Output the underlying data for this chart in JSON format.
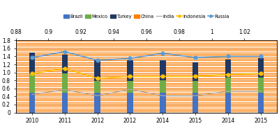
{
  "x_labels": [
    "2010",
    "2011",
    "2012",
    "2012",
    "2014",
    "2015",
    "2014",
    "2015"
  ],
  "top_axis_values": [
    "0.88",
    "0.9",
    "0.92",
    "0.94",
    "0.96",
    "0.98",
    "1",
    "1.02"
  ],
  "ylim": [
    0,
    1.8
  ],
  "yticks": [
    0,
    0.2,
    0.4,
    0.6,
    0.8,
    1.0,
    1.2,
    1.4,
    1.6,
    1.8
  ],
  "bar_width": 0.18,
  "brazil_vals": [
    0.5,
    0.5,
    0.5,
    0.5,
    0.5,
    0.5,
    0.5,
    0.5
  ],
  "mexico_vals": [
    0.47,
    0.47,
    0.28,
    0.28,
    0.3,
    0.28,
    0.38,
    0.38
  ],
  "turkey_vals": [
    0.52,
    0.47,
    0.52,
    0.52,
    0.5,
    0.47,
    0.45,
    0.47
  ],
  "china_y_levels": [
    0.02,
    0.06,
    0.1,
    0.14,
    0.18,
    0.22,
    0.26,
    0.3,
    0.34,
    0.38,
    0.42,
    0.46,
    0.5,
    0.54,
    0.58,
    0.62,
    0.66,
    0.7,
    0.74,
    0.78,
    0.82,
    0.86,
    0.9,
    0.94,
    0.98,
    1.02,
    1.06,
    1.1,
    1.14,
    1.18,
    1.22,
    1.26,
    1.3,
    1.34,
    1.38,
    1.42,
    1.46,
    1.5,
    1.54,
    1.58,
    1.62,
    1.66,
    1.7,
    1.74,
    1.78
  ],
  "india_y": [
    0.45,
    0.57,
    0.42,
    0.58,
    0.42,
    0.42,
    0.53,
    0.53
  ],
  "indonesia_y": [
    0.97,
    1.1,
    0.85,
    0.9,
    0.9,
    0.9,
    0.95,
    0.97
  ],
  "russia_y": [
    1.37,
    1.52,
    1.3,
    1.35,
    1.48,
    1.37,
    1.4,
    1.4
  ],
  "colors": {
    "brazil": "#4472C4",
    "mexico": "#70AD47",
    "turkey": "#203864",
    "china": "#FF7F00",
    "india": "#A9A9A9",
    "indonesia": "#FFC000",
    "russia": "#5B9BD5"
  }
}
